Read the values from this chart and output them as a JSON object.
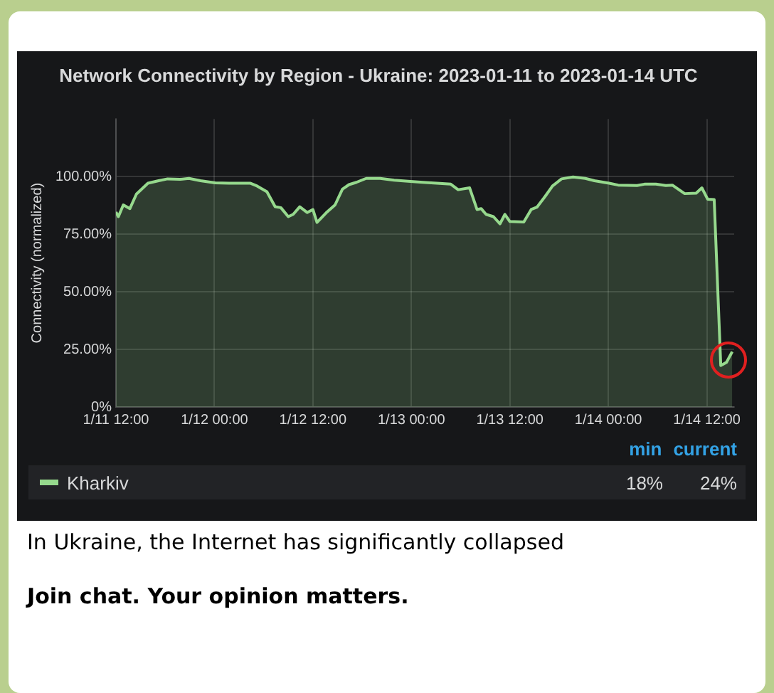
{
  "chart_data": {
    "type": "area",
    "title": "Network Connectivity by Region - Ukraine: 2023-01-11 to 2023-01-14 UTC",
    "ylabel": "Connectivity (normalized)",
    "x": [
      "2023-01-11T12:00",
      "2023-01-11T12:18",
      "2023-01-11T12:54",
      "2023-01-11T13:42",
      "2023-01-11T14:30",
      "2023-01-11T15:54",
      "2023-01-11T17:12",
      "2023-01-11T18:18",
      "2023-01-11T19:48",
      "2023-01-11T20:54",
      "2023-01-11T22:18",
      "2023-01-12T00:06",
      "2023-01-12T01:48",
      "2023-01-12T04:24",
      "2023-01-12T05:12",
      "2023-01-12T06:24",
      "2023-01-12T07:24",
      "2023-01-12T08:06",
      "2023-01-12T09:00",
      "2023-01-12T09:36",
      "2023-01-12T10:24",
      "2023-01-12T11:18",
      "2023-01-12T12:00",
      "2023-01-12T12:30",
      "2023-01-12T13:36",
      "2023-01-12T14:42",
      "2023-01-12T15:36",
      "2023-01-12T16:24",
      "2023-01-12T17:18",
      "2023-01-12T18:30",
      "2023-01-12T20:12",
      "2023-01-12T21:54",
      "2023-01-12T23:36",
      "2023-01-13T01:24",
      "2023-01-13T03:06",
      "2023-01-13T04:48",
      "2023-01-13T05:42",
      "2023-01-13T07:06",
      "2023-01-13T08:00",
      "2023-01-13T08:30",
      "2023-01-13T09:06",
      "2023-01-13T10:00",
      "2023-01-13T10:48",
      "2023-01-13T11:24",
      "2023-01-13T12:00",
      "2023-01-13T13:42",
      "2023-01-13T14:36",
      "2023-01-13T15:18",
      "2023-01-13T16:18",
      "2023-01-13T17:12",
      "2023-01-13T18:18",
      "2023-01-13T19:42",
      "2023-01-13T21:12",
      "2023-01-13T22:18",
      "2023-01-14T00:06",
      "2023-01-14T01:12",
      "2023-01-14T03:30",
      "2023-01-14T04:24",
      "2023-01-14T05:48",
      "2023-01-14T07:00",
      "2023-01-14T07:48",
      "2023-01-14T09:18",
      "2023-01-14T10:42",
      "2023-01-14T11:24",
      "2023-01-14T12:06",
      "2023-01-14T12:54",
      "2023-01-14T13:42",
      "2023-01-14T14:24",
      "2023-01-14T15:06"
    ],
    "series": [
      {
        "name": "Kharkiv",
        "color": "#96d98d",
        "values": [
          84.6,
          82.6,
          87.7,
          86.1,
          92.4,
          97.1,
          98.2,
          99.0,
          98.8,
          99.2,
          98.2,
          97.3,
          97.1,
          97.1,
          95.9,
          93.4,
          86.9,
          86.5,
          82.6,
          83.6,
          86.9,
          84.4,
          85.7,
          80.1,
          84.2,
          87.7,
          94.5,
          96.5,
          97.5,
          99.2,
          99.2,
          98.4,
          98.0,
          97.5,
          97.1,
          96.7,
          94.3,
          95.1,
          85.7,
          86.1,
          83.6,
          82.6,
          79.5,
          83.6,
          80.5,
          80.3,
          85.7,
          86.7,
          91.4,
          95.9,
          99.0,
          99.8,
          99.2,
          98.2,
          97.1,
          96.3,
          96.1,
          96.7,
          96.7,
          96.1,
          96.3,
          92.6,
          92.8,
          95.1,
          90.2,
          90.0,
          18,
          19.4,
          24
        ]
      }
    ],
    "xlim": [
      "2023-01-11T12:00",
      "2023-01-14T15:20"
    ],
    "xticks": [
      {
        "value": "2023-01-11T12:00",
        "label": "1/11 12:00"
      },
      {
        "value": "2023-01-12T00:00",
        "label": "1/12 00:00"
      },
      {
        "value": "2023-01-12T12:00",
        "label": "1/12 12:00"
      },
      {
        "value": "2023-01-13T00:00",
        "label": "1/13 00:00"
      },
      {
        "value": "2023-01-13T12:00",
        "label": "1/13 12:00"
      },
      {
        "value": "2023-01-14T00:00",
        "label": "1/14 00:00"
      },
      {
        "value": "2023-01-14T12:00",
        "label": "1/14 12:00"
      }
    ],
    "ylim": [
      0,
      125
    ],
    "yticks": [
      {
        "value": 0,
        "label": "0%"
      },
      {
        "value": 25,
        "label": "25.00%"
      },
      {
        "value": 50,
        "label": "50.00%"
      },
      {
        "value": 75,
        "label": "75.00%"
      },
      {
        "value": 100,
        "label": "100.00%"
      }
    ],
    "grid": true,
    "legend": "bottom",
    "marker": "none",
    "line_style": "solid",
    "annotations": [
      "min",
      "current",
      "18%",
      "24%",
      "In Ukraine, the Internet has significantly collapsed",
      "Join chat. Your opinion matters."
    ]
  }
}
